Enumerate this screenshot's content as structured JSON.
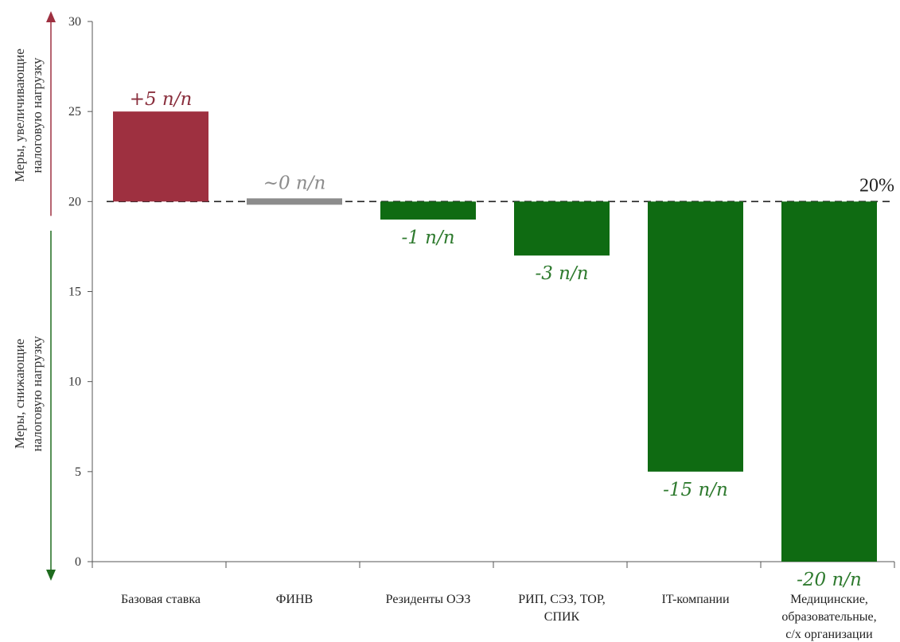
{
  "chart_data": {
    "type": "bar",
    "baseline": 20,
    "ylim": [
      0,
      30
    ],
    "yticks": [
      0,
      5,
      10,
      15,
      20,
      25,
      30
    ],
    "grid": false,
    "categories": [
      [
        "Базовая ставка"
      ],
      [
        "ФИНВ"
      ],
      [
        "Резиденты ОЭЗ"
      ],
      [
        "РИП, СЭЗ, ТОР,",
        "СПИК"
      ],
      [
        "IT-компании"
      ],
      [
        "Медицинские,",
        "образовательные,",
        "с/х организации"
      ]
    ],
    "values": [
      25,
      20,
      19,
      17,
      5,
      0
    ],
    "data_labels": [
      "+5 п/п",
      "~0 п/п",
      "-1 п/п",
      "-3 п/п",
      "-15 п/п",
      "-20 п/п"
    ],
    "bar_colors": [
      "#9e3040",
      "#8c8c8c",
      "#0f6b12",
      "#0f6b12",
      "#0f6b12",
      "#0f6b12"
    ],
    "label_colors": [
      "#8a2f3d",
      "#8c8c8c",
      "#2e7a2e",
      "#2e7a2e",
      "#2e7a2e",
      "#2e7a2e"
    ],
    "reference_label": "20%",
    "side_labels": {
      "up": [
        "Меры, увеличивающие",
        "налоговую нагрузку"
      ],
      "down": [
        "Меры, снижающие",
        "налоговую нагрузку"
      ]
    },
    "colors": {
      "up_arrow": "#9e3040",
      "down_arrow": "#1e6b1e",
      "axis": "#555555"
    }
  }
}
